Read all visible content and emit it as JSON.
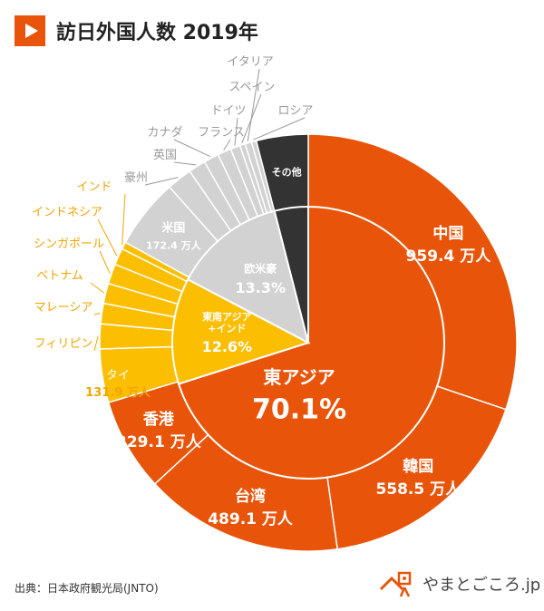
{
  "header": {
    "title": "訪日外国人数 2019年",
    "icon": "play-square-icon"
  },
  "colors": {
    "east_asia": "#E8550A",
    "sea": "#FBBE00",
    "west": "#D2D2D2",
    "other": "#333333",
    "west_label": "#999999",
    "sea_label": "#F0A500",
    "accent_text": "#ffffff"
  },
  "chart_data": {
    "type": "pie",
    "title": "訪日外国人数 2019年",
    "inner": [
      {
        "name": "東アジア",
        "value": 70.1,
        "label": "70.1%",
        "color": "#E8550A"
      },
      {
        "name": "東南アジア\n+インド",
        "value": 12.6,
        "label": "12.6%",
        "color": "#FBBE00"
      },
      {
        "name": "欧米豪",
        "value": 13.3,
        "label": "13.3%",
        "color": "#D2D2D2"
      },
      {
        "name": "",
        "value": 4.0,
        "label": "",
        "color": "#333333"
      }
    ],
    "outer": [
      {
        "name": "中国",
        "value": 959.4,
        "value_label": "959.4 万人",
        "group": "east_asia"
      },
      {
        "name": "韓国",
        "value": 558.5,
        "value_label": "558.5 万人",
        "group": "east_asia"
      },
      {
        "name": "台湾",
        "value": 489.1,
        "value_label": "489.1 万人",
        "group": "east_asia"
      },
      {
        "name": "香港",
        "value": 229.1,
        "value_label": "229.1 万人",
        "group": "east_asia"
      },
      {
        "name": "タイ",
        "value": 131.9,
        "value_label": "131.9 万人",
        "group": "sea"
      },
      {
        "name": "フィリピン",
        "value": 61.3,
        "value_label": "",
        "group": "sea"
      },
      {
        "name": "マレーシア",
        "value": 50.2,
        "value_label": "",
        "group": "sea"
      },
      {
        "name": "ベトナム",
        "value": 49.5,
        "value_label": "",
        "group": "sea"
      },
      {
        "name": "シンガポール",
        "value": 49.2,
        "value_label": "",
        "group": "sea"
      },
      {
        "name": "インドネシア",
        "value": 41.3,
        "value_label": "",
        "group": "sea"
      },
      {
        "name": "インド",
        "value": 17.6,
        "value_label": "",
        "group": "sea"
      },
      {
        "name": "米国",
        "value": 172.4,
        "value_label": "172.4 万人",
        "group": "west"
      },
      {
        "name": "豪州",
        "value": 62.2,
        "value_label": "",
        "group": "west"
      },
      {
        "name": "英国",
        "value": 42.4,
        "value_label": "",
        "group": "west"
      },
      {
        "name": "カナダ",
        "value": 37.5,
        "value_label": "",
        "group": "west"
      },
      {
        "name": "フランス",
        "value": 33.6,
        "value_label": "",
        "group": "west"
      },
      {
        "name": "ドイツ",
        "value": 23.7,
        "value_label": "",
        "group": "west"
      },
      {
        "name": "スペイン",
        "value": 13.1,
        "value_label": "",
        "group": "west"
      },
      {
        "name": "イタリア",
        "value": 16.3,
        "value_label": "",
        "group": "west"
      },
      {
        "name": "ロシア",
        "value": 12.0,
        "value_label": "",
        "group": "west"
      },
      {
        "name": "その他",
        "value": 127.4,
        "value_label": "",
        "group": "other"
      }
    ]
  },
  "footer": {
    "source": "出典：日本政府観光局(JNTO)",
    "logo_text": "やまとごころ.jp",
    "logo_icon": "house-person-icon"
  }
}
